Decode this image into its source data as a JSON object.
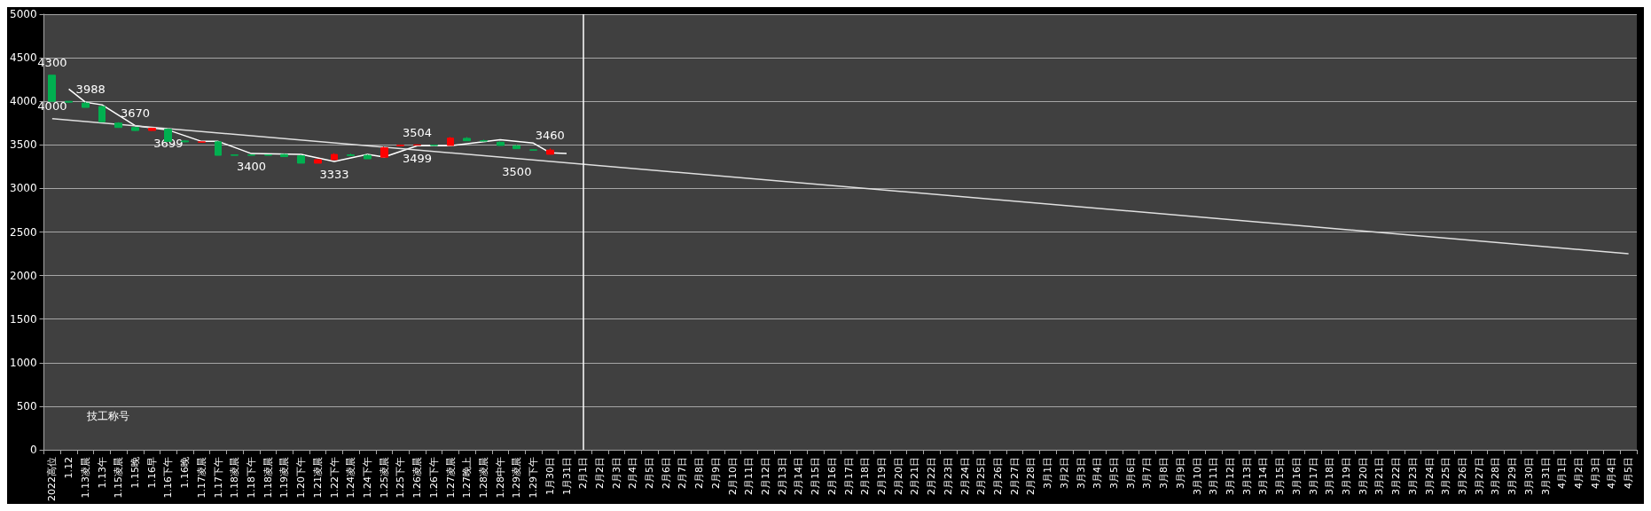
{
  "chart_data": {
    "type": "candlestick",
    "categories": [
      "2022高位",
      "1.12",
      "1.13凌晨",
      "1.13午",
      "1.15凌晨",
      "1.15晚",
      "1.16早",
      "1.16下午",
      "1.16晚",
      "1.17凌晨",
      "1.17下午",
      "1.18凌晨",
      "1.18下午",
      "1.18凌晨",
      "1.19凌晨",
      "1.20下午",
      "1.21凌晨",
      "1.22下午",
      "1.24凌晨",
      "1.24下午",
      "1.25凌晨",
      "1.25下午",
      "1.26凌晨",
      "1.26下午",
      "1.27凌晨",
      "1.27晚上",
      "1.28凌晨",
      "1.28中午",
      "1.29凌晨",
      "1.29下午",
      "1月30日",
      "1月31日",
      "2月1日",
      "2月2日",
      "2月3日",
      "2月4日",
      "2月5日",
      "2月6日",
      "2月7日",
      "2月8日",
      "2月9日",
      "2月10日",
      "2月11日",
      "2月12日",
      "2月13日",
      "2月14日",
      "2月15日",
      "2月16日",
      "2月17日",
      "2月18日",
      "2月19日",
      "2月20日",
      "2月21日",
      "2月22日",
      "2月23日",
      "2月24日",
      "2月25日",
      "2月26日",
      "2月27日",
      "2月28日",
      "3月1日",
      "3月2日",
      "3月3日",
      "3月4日",
      "3月5日",
      "3月6日",
      "3月7日",
      "3月8日",
      "3月9日",
      "3月10日",
      "3月11日",
      "3月12日",
      "3月13日",
      "3月14日",
      "3月15日",
      "3月16日",
      "3月17日",
      "3月18日",
      "3月19日",
      "3月20日",
      "3月21日",
      "3月22日",
      "3月23日",
      "3月24日",
      "3月25日",
      "3月26日",
      "3月27日",
      "3月28日",
      "3月29日",
      "3月30日",
      "3月31日",
      "4月1日",
      "4月2日",
      "4月3日",
      "4月4日",
      "4月5日"
    ],
    "ohlc": [
      [
        4300,
        4300,
        4000,
        4000
      ],
      [
        4000,
        4000,
        3985,
        3990
      ],
      [
        3980,
        3995,
        3930,
        3930
      ],
      [
        3940,
        3950,
        3760,
        3765
      ],
      [
        3750,
        3760,
        3695,
        3700
      ],
      [
        3700,
        3705,
        3660,
        3665
      ],
      [
        3665,
        3695,
        3660,
        3690
      ],
      [
        3680,
        3690,
        3540,
        3540
      ],
      [
        3545,
        3555,
        3530,
        3535
      ],
      [
        3530,
        3535,
        3530,
        3535
      ],
      [
        3535,
        3545,
        3380,
        3380
      ],
      [
        3385,
        3385,
        3380,
        3380
      ],
      [
        3385,
        3385,
        3380,
        3380
      ],
      [
        3385,
        3385,
        3380,
        3380
      ],
      [
        3390,
        3395,
        3365,
        3365
      ],
      [
        3375,
        3385,
        3290,
        3290
      ],
      [
        3290,
        3335,
        3290,
        3330
      ],
      [
        3330,
        3405,
        3330,
        3390
      ],
      [
        3385,
        3400,
        3375,
        3378
      ],
      [
        3380,
        3390,
        3340,
        3340
      ],
      [
        3358,
        3480,
        3358,
        3466
      ],
      [
        3490,
        3500,
        3490,
        3495
      ],
      [
        3497,
        3505,
        3495,
        3500
      ],
      [
        3497,
        3500,
        3490,
        3493
      ],
      [
        3493,
        3591,
        3493,
        3578
      ],
      [
        3575,
        3590,
        3545,
        3547
      ],
      [
        3547,
        3560,
        3540,
        3544
      ],
      [
        3530,
        3540,
        3490,
        3493
      ],
      [
        3490,
        3500,
        3455,
        3456
      ],
      [
        3443,
        3445,
        3438,
        3440
      ],
      [
        3392,
        3460,
        3392,
        3440
      ],
      null,
      null,
      null,
      null,
      null,
      null,
      null,
      null,
      null,
      null,
      null,
      null,
      null,
      null,
      null,
      null,
      null,
      null,
      null,
      null,
      null,
      null,
      null,
      null,
      null,
      null,
      null,
      null,
      null,
      null,
      null,
      null,
      null,
      null,
      null,
      null,
      null,
      null,
      null,
      null,
      null,
      null,
      null,
      null,
      null,
      null,
      null,
      null,
      null,
      null,
      null,
      null,
      null,
      null,
      null,
      null,
      null,
      null,
      null,
      null,
      null,
      null,
      null,
      null,
      null
    ],
    "colors": [
      "#00b050",
      "#00b050",
      "#00b050",
      "#00b050",
      "#00b050",
      "#00b050",
      "#ff0000",
      "#00b050",
      "#00b050",
      "#ff0000",
      "#00b050",
      "#00b050",
      "#00b050",
      "#00b050",
      "#00b050",
      "#00b050",
      "#ff0000",
      "#ff0000",
      "#00b050",
      "#00b050",
      "#ff0000",
      "#ff0000",
      "#ff0000",
      "#00b050",
      "#ff0000",
      "#00b050",
      "#00b050",
      "#00b050",
      "#00b050",
      "#00b050",
      "#ff0000",
      null,
      null,
      null,
      null,
      null,
      null,
      null,
      null,
      null,
      null,
      null,
      null,
      null,
      null,
      null,
      null,
      null,
      null,
      null,
      null,
      null,
      null,
      null,
      null,
      null,
      null,
      null,
      null,
      null,
      null,
      null,
      null,
      null,
      null,
      null,
      null,
      null,
      null,
      null,
      null,
      null,
      null,
      null,
      null,
      null,
      null,
      null,
      null,
      null,
      null,
      null,
      null,
      null,
      null,
      null,
      null,
      null,
      null,
      null,
      null,
      null,
      null,
      null,
      null,
      null
    ],
    "series": [
      {
        "type": "line",
        "color": "#ffffff",
        "x": [
          "1.12",
          "1.13凌晨",
          "1.13午",
          "1.15晚",
          "1.16下午",
          "1.17凌晨",
          "1.17下午",
          "1.18下午",
          "1.20下午",
          "1.22下午",
          "1.24下午",
          "1.25凌晨",
          "1.26凌晨",
          "1.27凌晨",
          "1.28中午",
          "1.29下午",
          "1月30日",
          "1月31日"
        ],
        "values": [
          4140,
          3990,
          3960,
          3720,
          3670,
          3540,
          3540,
          3400,
          3390,
          3310,
          3390,
          3360,
          3490,
          3490,
          3560,
          3520,
          3410,
          3400
        ]
      },
      {
        "type": "line",
        "color": "#e0e0e0",
        "x": [
          "2022高位",
          "4月5日"
        ],
        "values": [
          3800,
          2250
        ]
      }
    ],
    "ylim": [
      0,
      5000
    ],
    "yticks": [
      0,
      500,
      1000,
      1500,
      2000,
      2500,
      3000,
      3500,
      4000,
      4500,
      5000
    ],
    "grid": "y",
    "marker": "none",
    "line_style": "solid",
    "ref_lines": [
      {
        "axis": "x",
        "value": "2月1日",
        "color": "#ffffff"
      }
    ],
    "annotations": [
      {
        "text": "4300",
        "x": "2022高位",
        "y": 4300
      },
      {
        "text": "3988",
        "x": "1.12",
        "y": 4140
      },
      {
        "text": "4000",
        "x": "2022高位",
        "y": 3800
      },
      {
        "text": "3670",
        "x": "1.15晚",
        "y": 3720
      },
      {
        "text": "3699",
        "x": "1.16下午",
        "y": 3670
      },
      {
        "text": "3400",
        "x": "1.18下午",
        "y": 3400
      },
      {
        "text": "3333",
        "x": "1.22下午",
        "y": 3310
      },
      {
        "text": "3504",
        "x": "1.26凌晨",
        "y": 3490
      },
      {
        "text": "3499",
        "x": "1.26凌晨",
        "y": 3490
      },
      {
        "text": "3500",
        "x": "1.29凌晨",
        "y": 3343
      },
      {
        "text": "3460",
        "x": "1月30日",
        "y": 3460
      },
      "技工称号"
    ]
  }
}
